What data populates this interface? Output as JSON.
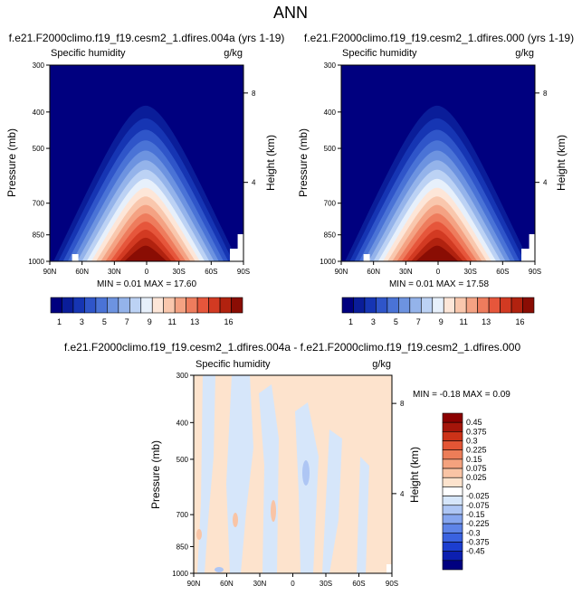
{
  "figure": {
    "title": "ANN",
    "colors": {
      "humidity_scale": [
        "#00007f",
        "#0a1d99",
        "#1635b3",
        "#2f55c9",
        "#4a73d6",
        "#6d93e0",
        "#94b3ea",
        "#bcd2f4",
        "#e7f0fb",
        "#fde6d8",
        "#f9c7ad",
        "#f4a283",
        "#ee7c5d",
        "#e6563b",
        "#d23a22",
        "#b1220f",
        "#8a0d04"
      ],
      "diff_scale": [
        "#000080",
        "#0c1fb0",
        "#1c3ed0",
        "#3a62e0",
        "#5e84e8",
        "#86a6ef",
        "#aec6f4",
        "#d6e6fa",
        "#ffffff",
        "#fde3cd",
        "#f9c4a5",
        "#f4a27e",
        "#ec7d58",
        "#e35535",
        "#cc3218",
        "#a5150a",
        "#8b0000"
      ]
    }
  },
  "panels": [
    {
      "title": "f.e21.F2000climo.f19_f19.cesm2_1.dfires.004a (yrs 1-19)",
      "variable": "Specific humidity",
      "units": "g/kg",
      "ylabel": "Pressure (mb)",
      "ylabel_right": "Height (km)",
      "yticks": [
        "300",
        "400",
        "500",
        "700",
        "850",
        "1000"
      ],
      "height_ticks": [
        "8",
        "4"
      ],
      "xticks": [
        "90N",
        "60N",
        "30N",
        "0",
        "30S",
        "60S",
        "90S"
      ],
      "stats": "MIN =  0.01  MAX =  17.60"
    },
    {
      "title": "f.e21.F2000climo.f19_f19.cesm2_1.dfires.000 (yrs 1-19)",
      "variable": "Specific humidity",
      "units": "g/kg",
      "ylabel": "Pressure (mb)",
      "ylabel_right": "Height (km)",
      "yticks": [
        "300",
        "400",
        "500",
        "700",
        "850",
        "1000"
      ],
      "height_ticks": [
        "8",
        "4"
      ],
      "xticks": [
        "90N",
        "60N",
        "30N",
        "0",
        "30S",
        "60S",
        "90S"
      ],
      "stats": "MIN =  0.01  MAX =  17.58"
    },
    {
      "title": "f.e21.F2000climo.f19_f19.cesm2_1.dfires.004a - f.e21.F2000climo.f19_f19.cesm2_1.dfires.000",
      "variable": "Specific humidity",
      "units": "g/kg",
      "ylabel": "Pressure (mb)",
      "ylabel_right": "Height (km)",
      "yticks": [
        "300",
        "400",
        "500",
        "700",
        "850",
        "1000"
      ],
      "height_ticks": [
        "8",
        "4"
      ],
      "xticks": [
        "90N",
        "60N",
        "30N",
        "0",
        "30S",
        "60S",
        "90S"
      ],
      "stats": "MIN = -0.18  MAX =  0.09"
    }
  ],
  "colorbars": {
    "humidity_labels": [
      "1",
      "3",
      "5",
      "7",
      "9",
      "11",
      "13",
      "16"
    ],
    "diff_labels": [
      "0.45",
      "0.375",
      "0.3",
      "0.225",
      "0.15",
      "0.075",
      "0.025",
      "0",
      "-0.025",
      "-0.075",
      "-0.15",
      "-0.225",
      "-0.3",
      "-0.375",
      "-0.45"
    ]
  },
  "chart_data": [
    {
      "type": "heatmap",
      "title": "f.e21.F2000climo.f19_f19.cesm2_1.dfires.004a (yrs 1-19)",
      "xlabel": "",
      "ylabel": "Pressure (mb)",
      "x_categories": [
        "90N",
        "60N",
        "30N",
        "0",
        "30S",
        "60S",
        "90S"
      ],
      "y_categories": [
        "300",
        "400",
        "500",
        "700",
        "850",
        "1000"
      ],
      "ylim": [
        1000,
        300
      ],
      "min": 0.01,
      "max": 17.6,
      "units": "g/kg"
    },
    {
      "type": "heatmap",
      "title": "f.e21.F2000climo.f19_f19.cesm2_1.dfires.000 (yrs 1-19)",
      "xlabel": "",
      "ylabel": "Pressure (mb)",
      "x_categories": [
        "90N",
        "60N",
        "30N",
        "0",
        "30S",
        "60S",
        "90S"
      ],
      "y_categories": [
        "300",
        "400",
        "500",
        "700",
        "850",
        "1000"
      ],
      "ylim": [
        1000,
        300
      ],
      "min": 0.01,
      "max": 17.58,
      "units": "g/kg"
    },
    {
      "type": "heatmap",
      "title": "f.e21.F2000climo.f19_f19.cesm2_1.dfires.004a - f.e21.F2000climo.f19_f19.cesm2_1.dfires.000",
      "xlabel": "",
      "ylabel": "Pressure (mb)",
      "x_categories": [
        "90N",
        "60N",
        "30N",
        "0",
        "30S",
        "60S",
        "90S"
      ],
      "y_categories": [
        "300",
        "400",
        "500",
        "700",
        "850",
        "1000"
      ],
      "ylim": [
        1000,
        300
      ],
      "min": -0.18,
      "max": 0.09,
      "units": "g/kg"
    }
  ]
}
